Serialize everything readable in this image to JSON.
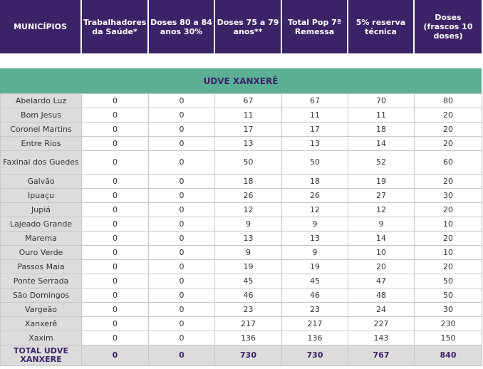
{
  "header": {
    "columns": [
      "MUNICÍPIOS",
      "Trabalhadores da Saúde*",
      "Doses 80 a 84 anos 30%",
      "Doses 75 a 79 anos**",
      "Total Pop 7ª Remessa",
      "5% reserva técnica",
      "Doses (frascos 10 doses)"
    ]
  },
  "region": {
    "title": "UDVE XANXERÊ"
  },
  "rows": [
    {
      "name": "Abelardo Luz",
      "values": [
        "0",
        "0",
        "67",
        "67",
        "70",
        "80"
      ]
    },
    {
      "name": "Bom Jesus",
      "values": [
        "0",
        "0",
        "11",
        "11",
        "11",
        "20"
      ]
    },
    {
      "name": "Coronel Martins",
      "values": [
        "0",
        "0",
        "17",
        "17",
        "18",
        "20"
      ]
    },
    {
      "name": "Entre Rios",
      "values": [
        "0",
        "0",
        "13",
        "13",
        "14",
        "20"
      ]
    },
    {
      "name": "Faxinal dos Guedes",
      "values": [
        "0",
        "0",
        "50",
        "50",
        "52",
        "60"
      ]
    },
    {
      "name": "Galvão",
      "values": [
        "0",
        "0",
        "18",
        "18",
        "19",
        "20"
      ]
    },
    {
      "name": "Ipuaçu",
      "values": [
        "0",
        "0",
        "26",
        "26",
        "27",
        "30"
      ]
    },
    {
      "name": "Jupiá",
      "values": [
        "0",
        "0",
        "12",
        "12",
        "12",
        "20"
      ]
    },
    {
      "name": "Lajeado Grande",
      "values": [
        "0",
        "0",
        "9",
        "9",
        "9",
        "10"
      ]
    },
    {
      "name": "Marema",
      "values": [
        "0",
        "0",
        "13",
        "13",
        "14",
        "20"
      ]
    },
    {
      "name": "Ouro Verde",
      "values": [
        "0",
        "0",
        "9",
        "9",
        "10",
        "10"
      ]
    },
    {
      "name": "Passos Maia",
      "values": [
        "0",
        "0",
        "19",
        "19",
        "20",
        "20"
      ]
    },
    {
      "name": "Ponte Serrada",
      "values": [
        "0",
        "0",
        "45",
        "45",
        "47",
        "50"
      ]
    },
    {
      "name": "São Domingos",
      "values": [
        "0",
        "0",
        "46",
        "46",
        "48",
        "50"
      ]
    },
    {
      "name": "Vargeão",
      "values": [
        "0",
        "0",
        "23",
        "23",
        "24",
        "30"
      ]
    },
    {
      "name": "Xanxerê",
      "values": [
        "0",
        "0",
        "217",
        "217",
        "227",
        "230"
      ]
    },
    {
      "name": "Xaxim",
      "values": [
        "0",
        "0",
        "136",
        "136",
        "143",
        "150"
      ]
    }
  ],
  "total": {
    "name": "TOTAL UDVE XANXERE",
    "values": [
      "0",
      "0",
      "730",
      "730",
      "767",
      "840"
    ]
  },
  "colors": {
    "header_bg": "#3b2367",
    "region_bg": "#5aaf95",
    "name_cell_bg": "#dcdcdc"
  }
}
